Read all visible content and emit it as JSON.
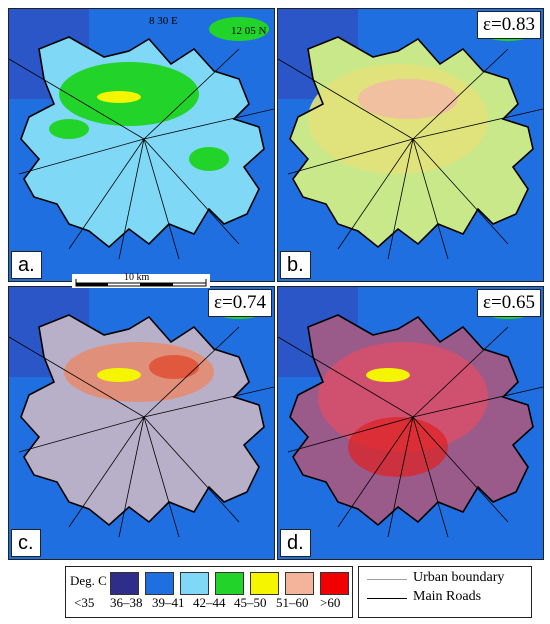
{
  "coords": {
    "lon": "8 30 E",
    "lat": "12 05 N"
  },
  "scale": {
    "label": "10 km"
  },
  "panels": [
    {
      "label": "a.",
      "epsilon": ""
    },
    {
      "label": "b.",
      "epsilon": "ε=0.83"
    },
    {
      "label": "c.",
      "epsilon": "ε=0.74"
    },
    {
      "label": "d.",
      "epsilon": "ε=0.65"
    }
  ],
  "legend": {
    "unit": "Deg. C",
    "classes": [
      {
        "label": "<35",
        "color": "#2e2e8a"
      },
      {
        "label": "36–38",
        "color": "#1f6fe0"
      },
      {
        "label": "39–41",
        "color": "#7fd8f5"
      },
      {
        "label": "42–44",
        "color": "#22d42a"
      },
      {
        "label": "45–50",
        "color": "#f5f500"
      },
      {
        "label": "51–60",
        "color": "#f4b49c"
      },
      {
        "label": ">60",
        "color": "#f00000"
      }
    ],
    "lines": [
      {
        "label": "Urban boundary",
        "color": "#a0a0a0"
      },
      {
        "label": "Main Roads",
        "color": "#000000"
      }
    ]
  }
}
